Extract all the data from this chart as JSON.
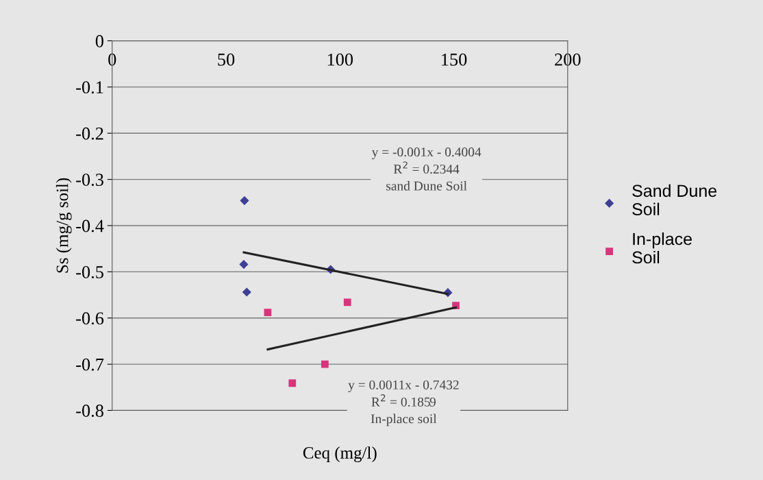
{
  "chart_data": {
    "type": "scatter",
    "xlabel": "Ceq (mg/l)",
    "ylabel": "Ss (mg/g soil)",
    "xlim": [
      0,
      200
    ],
    "xticks": [
      0,
      50,
      100,
      150,
      200
    ],
    "ylim": [
      -0.8,
      0
    ],
    "yticks": [
      -0.8,
      -0.7,
      -0.6,
      -0.5,
      -0.4,
      -0.3,
      -0.2,
      -0.1,
      0
    ],
    "grid": "y",
    "legend": "right",
    "series": [
      {
        "name": "Sand Dune\nSoil",
        "color": "#3f3f96",
        "marker": "diamond",
        "x": [
          58.1,
          57.8,
          59.1,
          95.9,
          147.4
        ],
        "values": [
          -0.346,
          -0.484,
          -0.544,
          -0.495,
          -0.545
        ]
      },
      {
        "name": "In-place\nSoil",
        "color": "#d6357c",
        "marker": "square",
        "x": [
          68.3,
          103.3,
          150.9,
          93.4,
          79.1
        ],
        "values": [
          -0.588,
          -0.566,
          -0.573,
          -0.7,
          -0.741
        ]
      },
      {
        "type": "line",
        "color": "#222222",
        "marker": "none",
        "x": [
          57.8,
          147.4
        ],
        "values": [
          -0.458,
          -0.548
        ]
      },
      {
        "type": "line",
        "color": "#222222",
        "marker": "none",
        "x": [
          68.3,
          150.9
        ],
        "values": [
          -0.668,
          -0.577
        ]
      }
    ],
    "annotations": [
      "y = -0.001x - 0.4004\nR$^{2}$ = 0.2344\nsand Dune Soil",
      "y = 0.0011x - 0.7432\nR$^{2}$ = 0.1859\nIn-place soil"
    ]
  }
}
